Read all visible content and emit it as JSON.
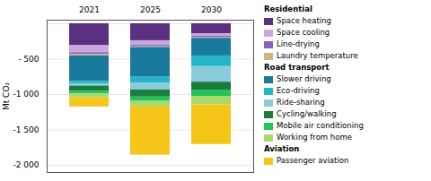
{
  "chart_data": {
    "type": "bar",
    "stacked": true,
    "categories": [
      "2021",
      "2025",
      "2030"
    ],
    "ylabel": "Mt CO₂",
    "ylim": [
      -2100,
      50
    ],
    "yticks": [
      {
        "value": -2000,
        "label": "-2 000"
      },
      {
        "value": -1500,
        "label": "-1 500"
      },
      {
        "value": -1000,
        "label": "-1 000"
      },
      {
        "value": -500,
        "label": "- 500"
      },
      {
        "value": 0,
        "label": ""
      }
    ],
    "grid": true,
    "legend": "right",
    "series": [
      {
        "name": "Space heating",
        "group": "Residential",
        "color": "#5c3080",
        "values": [
          -310,
          -240,
          -145
        ]
      },
      {
        "name": "Space cooling",
        "group": "Residential",
        "color": "#c9a8e0",
        "values": [
          -100,
          -65,
          -30
        ]
      },
      {
        "name": "Line-drying",
        "group": "Residential",
        "color": "#8b5fbf",
        "values": [
          -25,
          -20,
          -20
        ]
      },
      {
        "name": "Laundry temperature",
        "group": "Residential",
        "color": "#c8b87a",
        "values": [
          -20,
          -10,
          -10
        ]
      },
      {
        "name": "Slower driving",
        "group": "Road transport",
        "color": "#1a7a9e",
        "values": [
          -360,
          -420,
          -250
        ]
      },
      {
        "name": "Eco-driving",
        "group": "Road transport",
        "color": "#25b5c8",
        "values": [
          -40,
          -80,
          -150
        ]
      },
      {
        "name": "Ride-sharing",
        "group": "Road transport",
        "color": "#88ccdc",
        "values": [
          -25,
          -100,
          -220
        ]
      },
      {
        "name": "Cycling/walking",
        "group": "Road transport",
        "color": "#1a7d3c",
        "values": [
          -75,
          -100,
          -120
        ]
      },
      {
        "name": "Mobile air conditioning",
        "group": "Road transport",
        "color": "#22c45a",
        "values": [
          -35,
          -60,
          -80
        ]
      },
      {
        "name": "Working from home",
        "group": "Road transport",
        "color": "#a8d96a",
        "values": [
          -55,
          -80,
          -120
        ]
      },
      {
        "name": "Passenger aviation",
        "group": "Aviation",
        "color": "#f5c518",
        "values": [
          -130,
          -680,
          -560
        ]
      }
    ]
  }
}
